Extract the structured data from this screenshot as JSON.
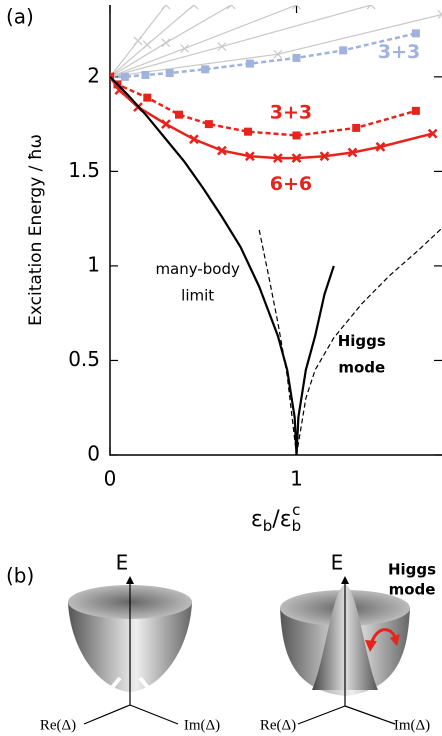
{
  "chart_data": {
    "type": "line",
    "panel_label": "(a)",
    "y_label": "Excitation Energy / ħω",
    "x_label": [
      "ε",
      "b",
      "/ε",
      "b",
      "c"
    ],
    "xlim": [
      0,
      1.78
    ],
    "ylim": [
      0,
      2.38
    ],
    "xticks": [
      0,
      1
    ],
    "yticks": [
      0,
      0.5,
      1,
      1.5,
      2
    ],
    "series": [
      {
        "color": "#c8c8c8",
        "marker": "x",
        "dash": false,
        "width": 1.2,
        "x": [
          0,
          0.15,
          0.3
        ],
        "values": [
          2,
          2.19,
          2.38
        ]
      },
      {
        "color": "#c8c8c8",
        "marker": "x",
        "dash": false,
        "width": 1.2,
        "x": [
          0,
          0.2,
          0.45
        ],
        "values": [
          2,
          2.17,
          2.38
        ]
      },
      {
        "color": "#c8c8c8",
        "marker": "x",
        "dash": false,
        "width": 1.2,
        "x": [
          0,
          0.3,
          0.65
        ],
        "values": [
          2,
          2.18,
          2.38
        ]
      },
      {
        "color": "#c8c8c8",
        "marker": "x",
        "dash": false,
        "width": 1.2,
        "x": [
          0,
          0.4,
          1.0
        ],
        "values": [
          2,
          2.15,
          2.38
        ]
      },
      {
        "color": "#c8c8c8",
        "marker": "x",
        "dash": false,
        "width": 1.2,
        "x": [
          0,
          0.6,
          1.4
        ],
        "values": [
          2,
          2.16,
          2.38
        ]
      },
      {
        "color": "#c8c8c8",
        "marker": "x",
        "dash": false,
        "width": 1.2,
        "x": [
          0,
          0.9,
          1.78
        ],
        "values": [
          2,
          2.12,
          2.33
        ]
      },
      {
        "color": "#9fb3dd",
        "marker": "square",
        "dash": true,
        "width": 2.5,
        "x": [
          0,
          0.08,
          0.19,
          0.32,
          0.51,
          0.75,
          1.0,
          1.25,
          1.64
        ],
        "values": [
          2.0,
          2.0,
          2.01,
          2.02,
          2.04,
          2.07,
          2.1,
          2.14,
          2.23
        ]
      },
      {
        "color": "#e8231c",
        "marker": "square",
        "dash": true,
        "width": 2.5,
        "x": [
          0,
          0.04,
          0.2,
          0.37,
          0.53,
          0.74,
          1.0,
          1.32,
          1.64
        ],
        "values": [
          2.0,
          1.96,
          1.89,
          1.8,
          1.75,
          1.71,
          1.69,
          1.73,
          1.82
        ]
      },
      {
        "color": "#e8231c",
        "marker": "x",
        "dash": false,
        "width": 2.5,
        "x": [
          0,
          0.05,
          0.15,
          0.3,
          0.45,
          0.6,
          0.75,
          0.9,
          1.0,
          1.15,
          1.3,
          1.45,
          1.73
        ],
        "values": [
          2.0,
          1.93,
          1.84,
          1.75,
          1.67,
          1.61,
          1.58,
          1.57,
          1.57,
          1.58,
          1.6,
          1.63,
          1.7
        ]
      },
      {
        "color": "#000000",
        "marker": null,
        "dash": false,
        "width": 2.2,
        "x": [
          0,
          0.1,
          0.2,
          0.3,
          0.4,
          0.5,
          0.6,
          0.7,
          0.8,
          0.9,
          0.95,
          0.99,
          1.0
        ],
        "values": [
          2.0,
          1.9,
          1.79,
          1.67,
          1.55,
          1.41,
          1.26,
          1.1,
          0.89,
          0.63,
          0.45,
          0.2,
          0
        ]
      },
      {
        "color": "#000000",
        "marker": null,
        "dash": false,
        "width": 2.2,
        "x": [
          1.0,
          1.01,
          1.05,
          1.1,
          1.15,
          1.2
        ],
        "values": [
          0,
          0.2,
          0.45,
          0.63,
          0.85,
          1.0
        ]
      },
      {
        "color": "#000000",
        "marker": null,
        "dash": true,
        "width": 1.2,
        "x": [
          0.8,
          0.85,
          0.9,
          0.95,
          1.0
        ],
        "values": [
          1.19,
          0.95,
          0.7,
          0.42,
          0
        ]
      },
      {
        "color": "#000000",
        "marker": null,
        "dash": true,
        "width": 1.2,
        "x": [
          1.0,
          1.05,
          1.1,
          1.2,
          1.35,
          1.5,
          1.65,
          1.78
        ],
        "values": [
          0,
          0.3,
          0.45,
          0.62,
          0.8,
          0.95,
          1.08,
          1.2
        ]
      }
    ],
    "annotations": [
      {
        "text": "3+3",
        "color": "#9fb3dd",
        "x": 1.55,
        "y": 2.13
      },
      {
        "text": "3+3",
        "color": "#e8231c",
        "x": 0.97,
        "y": 1.81
      },
      {
        "text": "6+6",
        "color": "#e8231c",
        "x": 0.97,
        "y": 1.43
      },
      {
        "text": "many-body",
        "color": "#000000",
        "x": 0.47,
        "y": 0.98
      },
      {
        "text": "limit",
        "color": "#000000",
        "x": 0.47,
        "y": 0.84
      },
      {
        "text": "Higgs",
        "color": "#000000",
        "x": 1.35,
        "y": 0.6
      },
      {
        "text": "mode",
        "color": "#000000",
        "x": 1.35,
        "y": 0.46
      }
    ]
  },
  "panel_b": {
    "label": "(b)",
    "annotation": [
      "Higgs",
      "mode"
    ],
    "diagrams": [
      {
        "e": "E",
        "re": "Re(Δ)",
        "im": "Im(Δ)"
      },
      {
        "e": "E",
        "re": "Re(Δ)",
        "im": "Im(Δ)"
      }
    ]
  }
}
